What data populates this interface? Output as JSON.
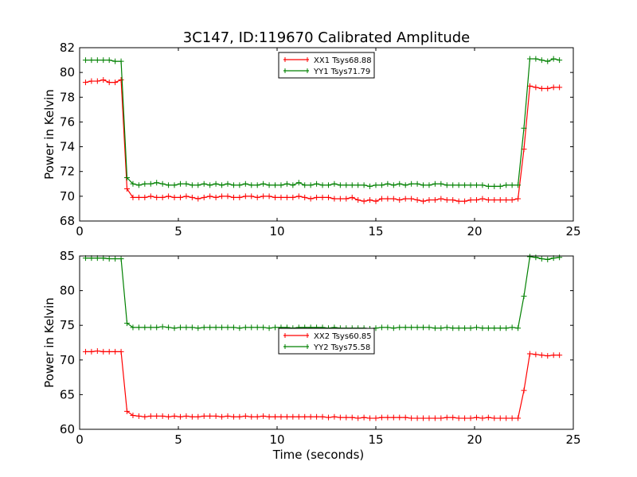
{
  "figure_title": "3C147, ID:119670 Calibrated Amplitude",
  "colors": {
    "xx": "#ff0000",
    "yy": "#008000",
    "axis": "#000000",
    "background": "#ffffff"
  },
  "chart_data": [
    {
      "type": "line",
      "title": "3C147, ID:119670 Calibrated Amplitude",
      "xlabel": "",
      "ylabel": "Power in Kelvin",
      "xlim": [
        0,
        25
      ],
      "ylim": [
        68,
        82
      ],
      "xticks": [
        0,
        5,
        10,
        15,
        20,
        25
      ],
      "yticks": [
        68,
        70,
        72,
        74,
        76,
        78,
        80,
        82
      ],
      "grid": false,
      "legend_position": "top-center",
      "x": [
        0.3,
        0.6,
        0.9,
        1.2,
        1.5,
        1.8,
        2.1,
        2.4,
        2.7,
        3.0,
        3.3,
        3.6,
        3.9,
        4.2,
        4.5,
        4.8,
        5.1,
        5.4,
        5.7,
        6.0,
        6.3,
        6.6,
        6.9,
        7.2,
        7.5,
        7.8,
        8.1,
        8.4,
        8.7,
        9.0,
        9.3,
        9.6,
        9.9,
        10.2,
        10.5,
        10.8,
        11.1,
        11.4,
        11.7,
        12.0,
        12.3,
        12.6,
        12.9,
        13.2,
        13.5,
        13.8,
        14.1,
        14.4,
        14.7,
        15.0,
        15.3,
        15.6,
        15.9,
        16.2,
        16.5,
        16.8,
        17.1,
        17.4,
        17.7,
        18.0,
        18.3,
        18.6,
        18.9,
        19.2,
        19.5,
        19.8,
        20.1,
        20.4,
        20.7,
        21.0,
        21.3,
        21.6,
        21.9,
        22.2,
        22.5,
        22.8,
        23.1,
        23.4,
        23.7,
        24.0,
        24.3
      ],
      "series": [
        {
          "name": "XX1 Tsys68.88",
          "color": "#ff0000",
          "values": [
            79.2,
            79.3,
            79.3,
            79.4,
            79.2,
            79.2,
            79.4,
            70.6,
            69.9,
            69.9,
            69.9,
            70.0,
            69.9,
            69.9,
            70.0,
            69.9,
            69.9,
            70.0,
            69.9,
            69.8,
            69.9,
            70.0,
            69.9,
            70.0,
            70.0,
            69.9,
            69.9,
            70.0,
            70.0,
            69.9,
            70.0,
            70.0,
            69.9,
            69.9,
            69.9,
            69.9,
            70.0,
            69.9,
            69.8,
            69.9,
            69.9,
            69.9,
            69.8,
            69.8,
            69.8,
            69.9,
            69.7,
            69.6,
            69.7,
            69.6,
            69.8,
            69.8,
            69.8,
            69.7,
            69.8,
            69.8,
            69.7,
            69.6,
            69.7,
            69.7,
            69.8,
            69.7,
            69.7,
            69.6,
            69.6,
            69.7,
            69.7,
            69.8,
            69.7,
            69.7,
            69.7,
            69.7,
            69.7,
            69.8,
            73.8,
            78.9,
            78.8,
            78.7,
            78.7,
            78.8,
            78.8
          ],
          "x_override": null
        },
        {
          "name": "YY1 Tsys71.79",
          "color": "#008000",
          "values": [
            81.0,
            81.0,
            81.0,
            81.0,
            81.0,
            80.9,
            80.9,
            71.5,
            71.0,
            70.9,
            71.0,
            71.0,
            71.1,
            71.0,
            70.9,
            70.9,
            71.0,
            71.0,
            70.9,
            70.9,
            71.0,
            70.9,
            71.0,
            70.9,
            71.0,
            70.9,
            70.9,
            71.0,
            70.9,
            70.9,
            71.0,
            70.9,
            70.9,
            70.9,
            71.0,
            70.9,
            71.1,
            70.9,
            70.9,
            71.0,
            70.9,
            70.9,
            71.0,
            70.9,
            70.9,
            70.9,
            70.9,
            70.9,
            70.8,
            70.9,
            70.9,
            71.0,
            70.9,
            71.0,
            70.9,
            71.0,
            71.0,
            70.9,
            70.9,
            71.0,
            71.0,
            70.9,
            70.9,
            70.9,
            70.9,
            70.9,
            70.9,
            70.9,
            70.8,
            70.8,
            70.8,
            70.9,
            70.9,
            70.9,
            75.5,
            81.1,
            81.1,
            81.0,
            80.9,
            81.1,
            81.0
          ]
        }
      ]
    },
    {
      "type": "line",
      "title": "",
      "xlabel": "Time (seconds)",
      "ylabel": "Power in Kelvin",
      "xlim": [
        0,
        25
      ],
      "ylim": [
        60,
        85
      ],
      "xticks": [
        0,
        5,
        10,
        15,
        20,
        25
      ],
      "yticks": [
        60,
        65,
        70,
        75,
        80,
        85
      ],
      "grid": false,
      "legend_position": "center",
      "x": [
        0.3,
        0.6,
        0.9,
        1.2,
        1.5,
        1.8,
        2.1,
        2.4,
        2.7,
        3.0,
        3.3,
        3.6,
        3.9,
        4.2,
        4.5,
        4.8,
        5.1,
        5.4,
        5.7,
        6.0,
        6.3,
        6.6,
        6.9,
        7.2,
        7.5,
        7.8,
        8.1,
        8.4,
        8.7,
        9.0,
        9.3,
        9.6,
        9.9,
        10.2,
        10.5,
        10.8,
        11.1,
        11.4,
        11.7,
        12.0,
        12.3,
        12.6,
        12.9,
        13.2,
        13.5,
        13.8,
        14.1,
        14.4,
        14.7,
        15.0,
        15.3,
        15.6,
        15.9,
        16.2,
        16.5,
        16.8,
        17.1,
        17.4,
        17.7,
        18.0,
        18.3,
        18.6,
        18.9,
        19.2,
        19.5,
        19.8,
        20.1,
        20.4,
        20.7,
        21.0,
        21.3,
        21.6,
        21.9,
        22.2,
        22.5,
        22.8,
        23.1,
        23.4,
        23.7,
        24.0,
        24.3
      ],
      "series": [
        {
          "name": "XX2 Tsys60.85",
          "color": "#ff0000",
          "values": [
            71.2,
            71.2,
            71.3,
            71.2,
            71.2,
            71.2,
            71.2,
            62.6,
            62.0,
            61.9,
            61.8,
            61.9,
            61.9,
            61.9,
            61.8,
            61.9,
            61.8,
            61.9,
            61.8,
            61.8,
            61.9,
            61.9,
            61.9,
            61.8,
            61.9,
            61.8,
            61.8,
            61.9,
            61.8,
            61.8,
            61.9,
            61.8,
            61.8,
            61.8,
            61.8,
            61.8,
            61.8,
            61.8,
            61.8,
            61.8,
            61.8,
            61.7,
            61.8,
            61.7,
            61.7,
            61.7,
            61.6,
            61.7,
            61.6,
            61.6,
            61.7,
            61.7,
            61.7,
            61.7,
            61.7,
            61.6,
            61.6,
            61.6,
            61.6,
            61.6,
            61.6,
            61.7,
            61.7,
            61.6,
            61.6,
            61.6,
            61.7,
            61.6,
            61.7,
            61.6,
            61.6,
            61.6,
            61.6,
            61.6,
            65.6,
            70.9,
            70.8,
            70.7,
            70.6,
            70.7,
            70.7
          ]
        },
        {
          "name": "YY2 Tsys75.58",
          "color": "#008000",
          "values": [
            84.7,
            84.7,
            84.7,
            84.7,
            84.6,
            84.6,
            84.6,
            75.3,
            74.7,
            74.7,
            74.7,
            74.7,
            74.7,
            74.8,
            74.7,
            74.6,
            74.7,
            74.7,
            74.7,
            74.6,
            74.7,
            74.7,
            74.7,
            74.7,
            74.7,
            74.7,
            74.6,
            74.7,
            74.7,
            74.7,
            74.7,
            74.6,
            74.7,
            74.7,
            74.7,
            74.6,
            74.7,
            74.7,
            74.7,
            74.7,
            74.7,
            74.6,
            74.7,
            74.6,
            74.6,
            74.6,
            74.6,
            74.6,
            74.5,
            74.6,
            74.7,
            74.7,
            74.6,
            74.7,
            74.7,
            74.7,
            74.7,
            74.7,
            74.7,
            74.6,
            74.6,
            74.7,
            74.6,
            74.6,
            74.6,
            74.6,
            74.7,
            74.6,
            74.6,
            74.6,
            74.6,
            74.6,
            74.7,
            74.6,
            79.2,
            84.9,
            84.8,
            84.6,
            84.5,
            84.7,
            84.8
          ]
        }
      ]
    }
  ]
}
